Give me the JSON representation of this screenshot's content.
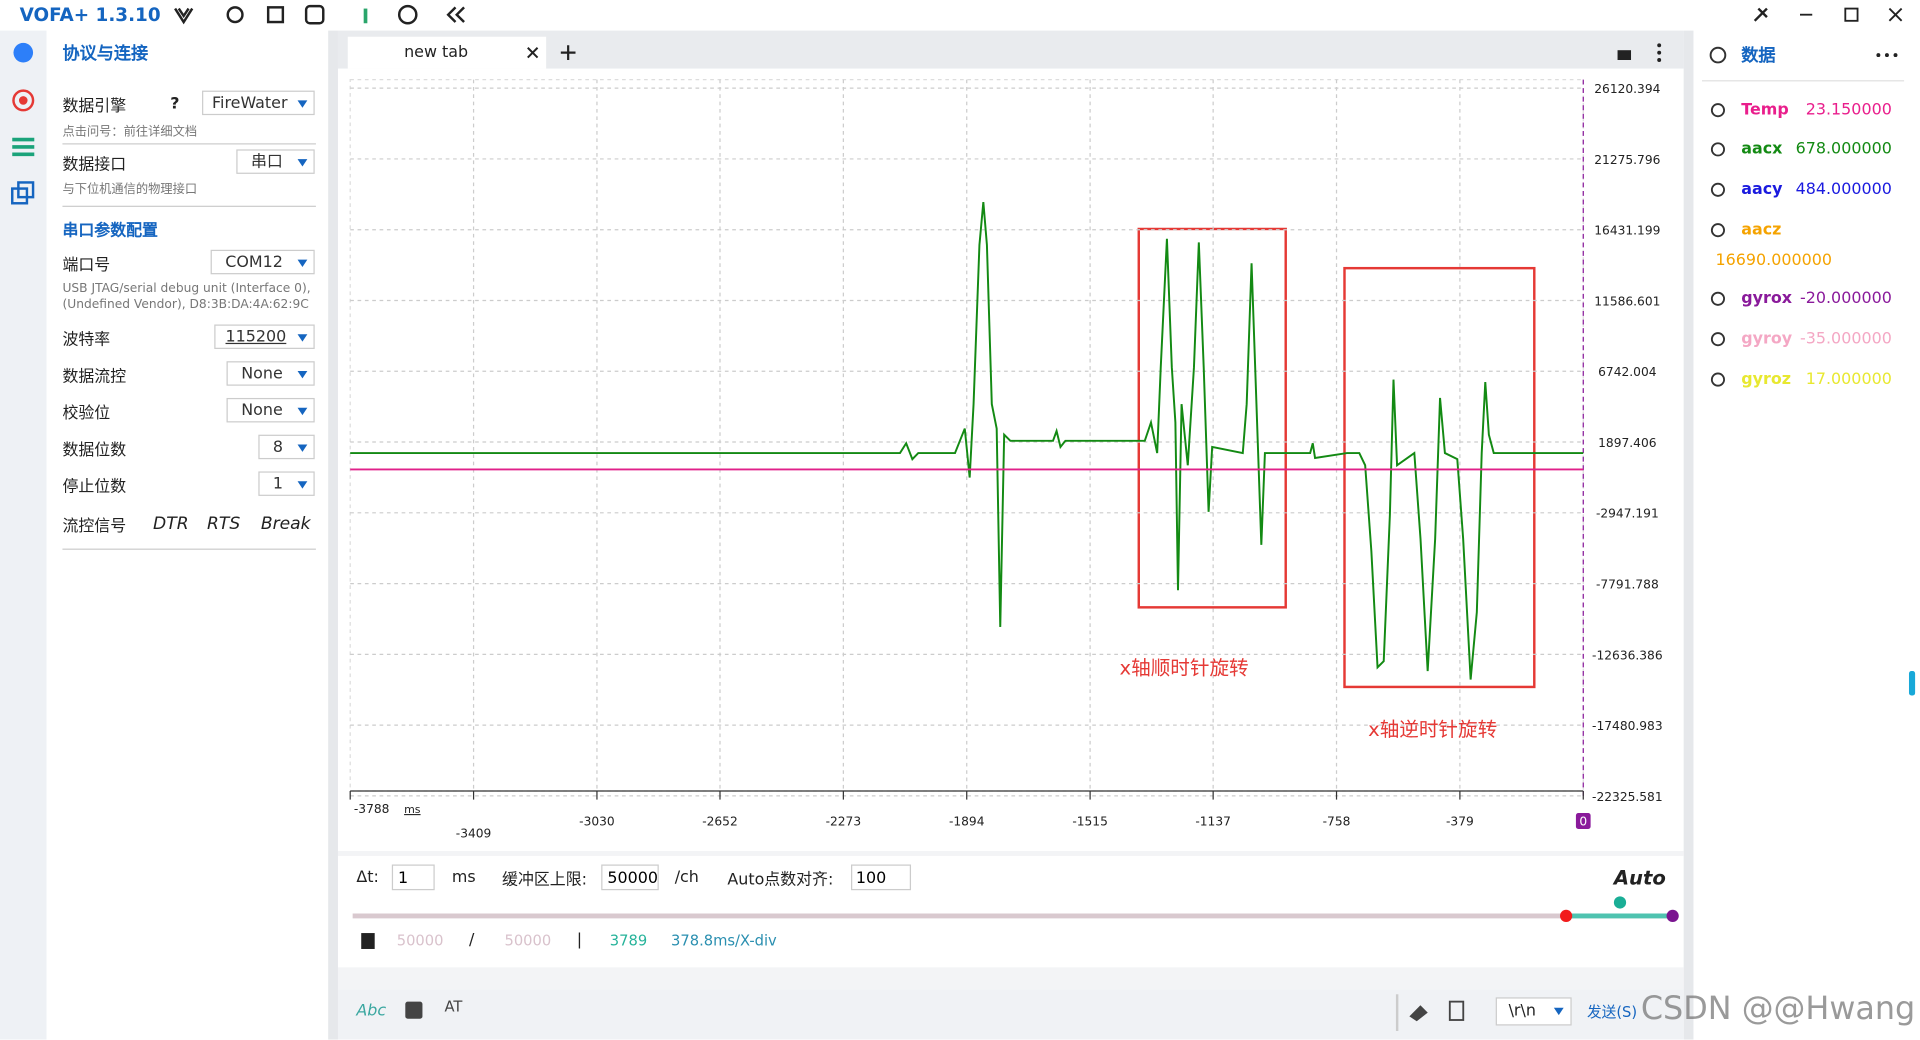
{
  "app": {
    "title": "VOFA+ 1.3.10"
  },
  "left": {
    "heading": "协议与连接",
    "engine": {
      "label": "数据引擎",
      "help": "?",
      "value": "FireWater",
      "hint": "点击问号：前往详细文档"
    },
    "interface": {
      "label": "数据接口",
      "value": "串口",
      "hint": "与下位机通信的物理接口"
    },
    "serial_heading": "串口参数配置",
    "port": {
      "label": "端口号",
      "value": "COM12",
      "desc": [
        "USB JTAG/serial debug unit (Interface 0),",
        "(Undefined Vendor), D8:3B:DA:4A:62:9C"
      ]
    },
    "baud": {
      "label": "波特率",
      "value": "115200"
    },
    "flow": {
      "label": "数据流控",
      "value": "None"
    },
    "parity": {
      "label": "校验位",
      "value": "None"
    },
    "databits": {
      "label": "数据位数",
      "value": "8"
    },
    "stopbits": {
      "label": "停止位数",
      "value": "1"
    },
    "signals": {
      "label": "流控信号",
      "items": [
        "DTR",
        "RTS",
        "Break"
      ]
    }
  },
  "tab": {
    "title": "new tab"
  },
  "chart_data": {
    "type": "line",
    "x_unit": "ms",
    "xlim": [
      -3788,
      0
    ],
    "xticks": [
      -3788,
      -3409,
      -3030,
      -2652,
      -2273,
      -1894,
      -1515,
      -1137,
      -758,
      -379,
      0
    ],
    "ylim": [
      -22325.581,
      26120.394
    ],
    "yticks": [
      26120.394,
      21275.796,
      16431.199,
      11586.601,
      6742.004,
      1897.406,
      -2947.191,
      -7791.788,
      -12636.386,
      -17480.983,
      -22325.581
    ],
    "grid": true,
    "series": [
      {
        "color": "#138a13",
        "x": [
          -3788,
          -2099,
          -2080,
          -2061,
          -2043,
          -1930,
          -1900,
          -1885,
          -1873,
          -1855,
          -1843,
          -1832,
          -1817,
          -1802,
          -1791,
          -1779,
          -1760,
          -1629,
          -1618,
          -1606,
          -1591,
          -1347,
          -1328,
          -1309,
          -1298,
          -1279,
          -1264,
          -1253,
          -1245,
          -1234,
          -1215,
          -1196,
          -1181,
          -1166,
          -1151,
          -1140,
          -1046,
          -1034,
          -1019,
          -1004,
          -989,
          -978,
          -839,
          -831,
          -824,
          -726,
          -688,
          -670,
          -651,
          -632,
          -613,
          -594,
          -583,
          -572,
          -519,
          -500,
          -478,
          -455,
          -440,
          -425,
          -387,
          -369,
          -346,
          -327,
          -312,
          -301,
          -290,
          -275,
          0
        ],
        "values": [
          1143,
          1143,
          1813,
          724,
          1143,
          1143,
          2819,
          -533,
          4496,
          15392,
          18325,
          15392,
          4496,
          2819,
          -10759,
          2400,
          1981,
          1981,
          2652,
          1562,
          1981,
          1981,
          3238,
          1143,
          7010,
          15811,
          7010,
          3238,
          -8245,
          4496,
          305,
          7010,
          15559,
          7010,
          -2880,
          1562,
          1143,
          4496,
          14134,
          4496,
          -5143,
          1143,
          1143,
          1813,
          808,
          1143,
          1143,
          305,
          -5562,
          -13525,
          -13106,
          -3048,
          6172,
          305,
          1143,
          -4724,
          -13776,
          -4724,
          4915,
          1143,
          724,
          -4724,
          -14363,
          -9753,
          1143,
          6004,
          2400,
          1143,
          1143
        ]
      },
      {
        "color": "#e0218a",
        "x": [
          -3788,
          0
        ],
        "values": [
          23.15,
          23.15
        ]
      }
    ],
    "annotations": [
      "x轴顺时针旋转",
      "x轴逆时针旋转"
    ]
  },
  "controls": {
    "dt_label": "Δt:",
    "dt": "1",
    "dt_unit": "ms",
    "buffer_label": "缓冲区上限:",
    "buffer": "50000",
    "buffer_unit": "/ch",
    "auto_label": "Auto点数对齐:",
    "auto": "100",
    "mode": "Auto"
  },
  "stats": {
    "a": "50000",
    "slash": "/",
    "b": "50000",
    "bar": "|",
    "points": "3789",
    "div": "378.8ms/X-div"
  },
  "send": {
    "mode": "Abc",
    "placeholder": "AT",
    "eol": "\\r\\n",
    "button": "发送(S)"
  },
  "right": {
    "title": "数据",
    "channels": [
      {
        "name": "Temp",
        "value": "23.150000",
        "color": "#e91e8c"
      },
      {
        "name": "aacx",
        "value": "678.000000",
        "color": "#138a13"
      },
      {
        "name": "aacy",
        "value": "484.000000",
        "color": "#1a1adf"
      },
      {
        "name": "aacz",
        "value": "16690.000000",
        "color": "#f5a300"
      },
      {
        "name": "gyrox",
        "value": "-20.000000",
        "color": "#8a1a9b"
      },
      {
        "name": "gyroy",
        "value": "-35.000000",
        "color": "#f4a7c4"
      },
      {
        "name": "gyroz",
        "value": "17.000000",
        "color": "#e8e830"
      }
    ]
  },
  "watermark": "CSDN @@Hwang"
}
